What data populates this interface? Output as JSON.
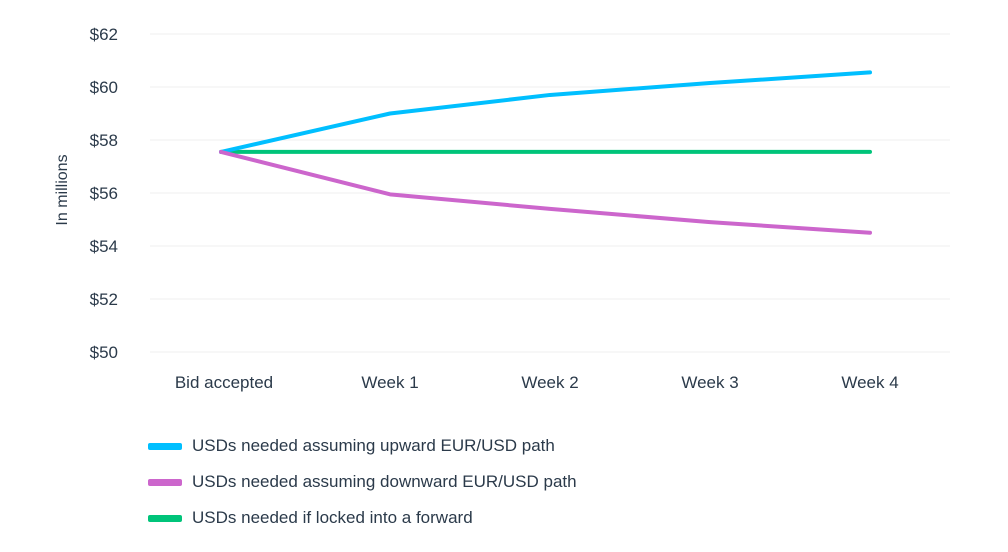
{
  "chart_data": {
    "type": "line",
    "ylabel": "In millions",
    "xlabel": "",
    "categories": [
      "Bid accepted",
      "Week 1",
      "Week 2",
      "Week 3",
      "Week 4"
    ],
    "ylim": [
      50,
      62
    ],
    "yticks": [
      50,
      52,
      54,
      56,
      58,
      60,
      62
    ],
    "ytick_labels": [
      "$50",
      "$52",
      "$54",
      "$56",
      "$58",
      "$60",
      "$62"
    ],
    "grid": true,
    "legend_position": "bottom-left",
    "series": [
      {
        "name": "USDs needed assuming upward EUR/USD path",
        "color": "#00bfff",
        "values": [
          57.55,
          59.0,
          59.7,
          60.15,
          60.55
        ]
      },
      {
        "name": "USDs needed assuming downward EUR/USD path",
        "color": "#cc66cc",
        "values": [
          57.55,
          55.95,
          55.4,
          54.9,
          54.5
        ]
      },
      {
        "name": "USDs needed if locked into a forward",
        "color": "#00c47a",
        "values": [
          57.55,
          57.55,
          57.55,
          57.55,
          57.55
        ]
      }
    ]
  }
}
